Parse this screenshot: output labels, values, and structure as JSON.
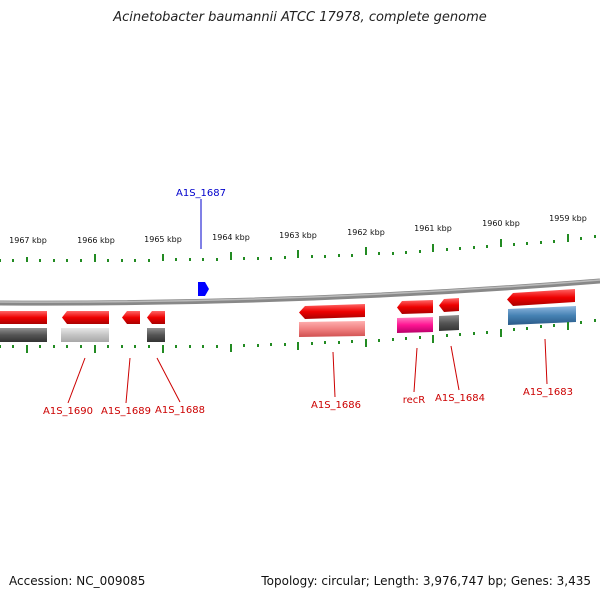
{
  "title": "Acinetobacter baumannii ATCC 17978, complete genome",
  "footer": {
    "accession": "Accession: NC_009085",
    "stats": "Topology: circular; Length: 3,976,747 bp; Genes: 3,435"
  },
  "scale_labels": [
    "1967 kbp",
    "1966 kbp",
    "1965 kbp",
    "1964 kbp",
    "1963 kbp",
    "1962 kbp",
    "1961 kbp",
    "1960 kbp",
    "1959 kbp"
  ],
  "gene_labels": [
    "A1S_1690",
    "A1S_1689",
    "A1S_1688",
    "A1S_1686",
    "recR",
    "A1S_1684",
    "A1S_1683"
  ],
  "highlight_label": "A1S_1687",
  "colors": {
    "backbone": "#808080",
    "gene_red": "#ee0000",
    "tick_green": "#228b22",
    "label_red": "#cc0000",
    "label_blue": "#0000cc",
    "highlight_blue": "#0000ff",
    "pink": "#ff1493",
    "steel_blue": "#4682b4",
    "salmon": "#f08080",
    "dark_gray": "#505050",
    "light_gray": "#c8c8c8"
  }
}
